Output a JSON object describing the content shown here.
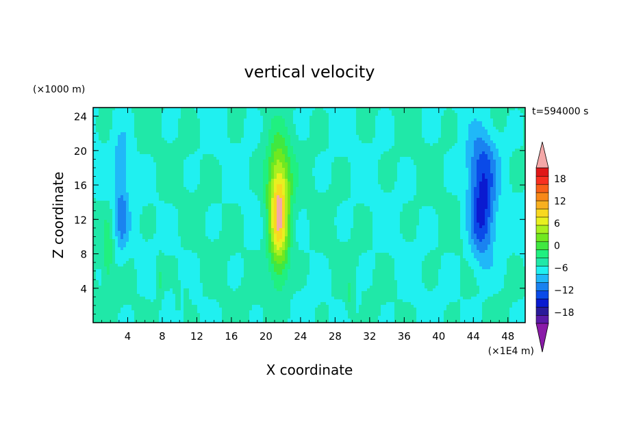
{
  "chart_data": {
    "type": "heatmap",
    "title": "vertical velocity",
    "xlabel": "X coordinate",
    "ylabel": "Z coordinate",
    "x_unit": "(×1E4 m)",
    "y_unit": "(×1000 m)",
    "time_label": "t=594000 s",
    "xlim": [
      0,
      50
    ],
    "ylim": [
      0,
      25
    ],
    "x_ticks": [
      4,
      8,
      12,
      16,
      20,
      24,
      28,
      32,
      36,
      40,
      44,
      48
    ],
    "y_ticks": [
      4,
      8,
      12,
      16,
      20,
      24
    ],
    "colorbar": {
      "min": -21,
      "max": 21,
      "step": 3,
      "labels": [
        "18",
        "12",
        "6",
        "0",
        "−6",
        "−12",
        "−18"
      ],
      "label_values": [
        18,
        12,
        6,
        0,
        -6,
        -12,
        -18
      ],
      "over_color": "#f4a8a8",
      "under_color": "#8a1aa8",
      "colors": [
        "#5a1aa8",
        "#2a1a9a",
        "#0a1ad0",
        "#0a4ae8",
        "#1a82f0",
        "#20b8f8",
        "#20f0f0",
        "#20e8a8",
        "#20f080",
        "#40e840",
        "#70e820",
        "#a8f020",
        "#e8f020",
        "#f8d820",
        "#f8b020",
        "#f88818",
        "#f86018",
        "#f83020",
        "#e01818"
      ]
    },
    "features": [
      {
        "x": 21.5,
        "z": 12,
        "sx": 1.2,
        "sz": 6.5,
        "w": 21
      },
      {
        "x": 21.5,
        "z": 17.5,
        "sx": 1.6,
        "sz": 4.5,
        "w": 6
      },
      {
        "x": 45,
        "z": 13,
        "sx": 1.5,
        "sz": 6,
        "w": -13
      },
      {
        "x": 45,
        "z": 19,
        "sx": 1.8,
        "sz": 3.5,
        "w": -5
      },
      {
        "x": 3.3,
        "z": 12.5,
        "sx": 0.8,
        "sz": 4.5,
        "w": -7
      },
      {
        "x": 3.3,
        "z": 19.5,
        "sx": 0.9,
        "sz": 3,
        "w": -4
      },
      {
        "x": 1.7,
        "z": 8,
        "sx": 0.6,
        "sz": 4,
        "w": 5
      },
      {
        "x": 7.7,
        "z": 5,
        "sx": 0.4,
        "sz": 2.5,
        "w": 4
      },
      {
        "x": 9.8,
        "z": 3,
        "sx": 0.3,
        "sz": 1.5,
        "w": 4
      },
      {
        "x": 10.8,
        "z": 2.5,
        "sx": 0.3,
        "sz": 1.5,
        "w": 4
      },
      {
        "x": 29.7,
        "z": 3,
        "sx": 0.4,
        "sz": 2,
        "w": 3
      },
      {
        "x": 30.6,
        "z": 2.5,
        "sx": 0.3,
        "sz": 1.5,
        "w": -3
      }
    ]
  }
}
